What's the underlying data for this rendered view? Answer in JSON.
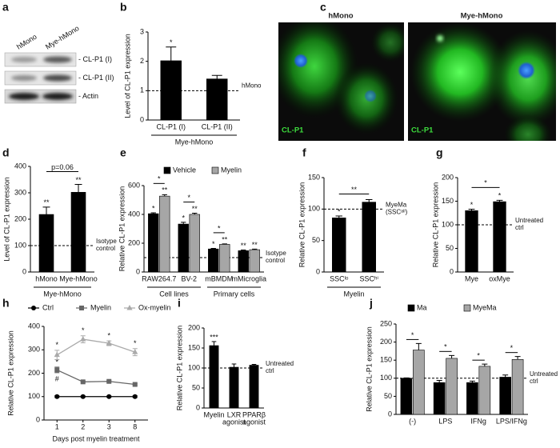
{
  "blot": {
    "panel": "a",
    "lanes": [
      "hMono",
      "Mye-hMono"
    ],
    "bands": [
      "- CL-P1 (I)",
      "- CL-P1 (II)",
      "- Actin"
    ]
  },
  "micrographs": {
    "panel": "c",
    "images": [
      {
        "title": "hMono",
        "stain": "CL-P1"
      },
      {
        "title": "Mye-hMono",
        "stain": "CL-P1"
      }
    ]
  },
  "chart_data": [
    {
      "type": "bar",
      "panel": "b",
      "ylabel": "Level of CL-P1 expression",
      "categories": [
        "CL-P1 (I)",
        "CL-P1 (II)"
      ],
      "values": [
        2.02,
        1.4
      ],
      "errors": [
        0.47,
        0.12
      ],
      "significance": [
        "*",
        null
      ],
      "color": "#000000",
      "ylim": [
        0,
        3
      ],
      "yticks": [
        0,
        1,
        2,
        3
      ],
      "reference_line": {
        "value": 1,
        "label": [
          "hMono"
        ]
      },
      "groups": [
        {
          "label": "Mye-hMono",
          "span": 2
        }
      ]
    },
    {
      "type": "bar",
      "panel": "d",
      "ylabel": "Level of CL-P1 expression",
      "categories": [
        "hMono",
        "Mye-hMono"
      ],
      "values": [
        218,
        302
      ],
      "errors": [
        28,
        30
      ],
      "significance": [
        "**",
        "**"
      ],
      "bracket_label": "p=0.06",
      "color": "#000000",
      "ylim": [
        0,
        400
      ],
      "yticks": [
        0,
        100,
        200,
        300,
        400
      ],
      "reference_line": {
        "value": 100,
        "label": [
          "Isotype",
          "control"
        ]
      },
      "groups": [
        {
          "label": "Mye-hMono",
          "span": 2
        }
      ]
    },
    {
      "type": "bar",
      "panel": "e",
      "ylabel": "Relative CL-P1 expression",
      "categories": [
        "RAW264.7",
        "BV-2",
        "mBMDM",
        "mMicroglia"
      ],
      "series": [
        {
          "name": "Vehicle",
          "color": "#000000",
          "values": [
            405,
            333,
            160,
            148
          ],
          "errors": [
            6,
            12,
            4,
            5
          ],
          "significance": [
            "*",
            "*",
            "*",
            "**"
          ]
        },
        {
          "name": "Myelin",
          "color": "#a6a6a6",
          "values": [
            527,
            400,
            192,
            155
          ],
          "errors": [
            10,
            8,
            3,
            4
          ],
          "significance": [
            "**",
            "**",
            "**",
            "**"
          ]
        }
      ],
      "bracket_labels": [
        "*",
        "*",
        "*",
        null
      ],
      "ylim": [
        0,
        600
      ],
      "yticks": [
        0,
        200,
        400,
        600
      ],
      "reference_line": {
        "value": 100,
        "label": [
          "Isotype",
          "control"
        ]
      },
      "groups": [
        {
          "label": "Cell lines",
          "span": 2
        },
        {
          "label": "Primary cells",
          "span": 2
        }
      ]
    },
    {
      "type": "bar",
      "panel": "f",
      "ylabel": "Relative CL-P1 expression",
      "categories": [
        "SSCˡᵒ",
        "SSCʰⁱ"
      ],
      "values": [
        86,
        111
      ],
      "errors": [
        3,
        4
      ],
      "significance": [
        "*",
        null
      ],
      "bracket_label": "**",
      "color": "#000000",
      "ylim": [
        0,
        150
      ],
      "yticks": [
        0,
        50,
        100,
        150
      ],
      "reference_line": {
        "value": 100,
        "label": [
          "MyeMa",
          "(SSCᵃˡˡ)"
        ]
      },
      "groups": [
        {
          "label": "Myelin",
          "span": 2
        }
      ]
    },
    {
      "type": "bar",
      "panel": "g",
      "ylabel": "Relative CL-P1 expression",
      "categories": [
        "Mye",
        "oxMye"
      ],
      "values": [
        130,
        149
      ],
      "errors": [
        3,
        3
      ],
      "significance": [
        "*",
        "*"
      ],
      "bracket_label": "*",
      "color": "#000000",
      "ylim": [
        0,
        200
      ],
      "yticks": [
        0,
        50,
        100,
        150,
        200
      ],
      "reference_line": {
        "value": 100,
        "label": [
          "Untreated",
          "ctrl"
        ]
      }
    },
    {
      "type": "line",
      "panel": "h",
      "ylabel": "Relative CL-P1 expression",
      "xlabel": "Days post myelin treatment",
      "categories": [
        "1",
        "2",
        "3",
        "8"
      ],
      "series": [
        {
          "name": "Ctrl",
          "color": "#000000",
          "marker": "circle",
          "values": [
            100,
            100,
            100,
            100
          ],
          "errors": [
            4,
            3,
            3,
            4
          ]
        },
        {
          "name": "Myelin",
          "color": "#666666",
          "marker": "square",
          "values": [
            214,
            163,
            165,
            152
          ],
          "errors": [
            12,
            3,
            3,
            3
          ],
          "significance": [
            "*",
            null,
            null,
            null
          ],
          "significance_below": [
            "#",
            null,
            null,
            null
          ]
        },
        {
          "name": "Ox-myelin",
          "color": "#aaaaaa",
          "marker": "triangle",
          "values": [
            278,
            345,
            328,
            290
          ],
          "errors": [
            20,
            15,
            10,
            15
          ],
          "significance": [
            "*",
            "*",
            "*",
            "*"
          ]
        }
      ],
      "ylim": [
        0,
        400
      ],
      "yticks": [
        0,
        100,
        200,
        300,
        400
      ]
    },
    {
      "type": "bar",
      "panel": "i",
      "ylabel": "Relative CL-P1 expression",
      "categories": [
        [
          "Myelin"
        ],
        [
          "LXR",
          "agonist"
        ],
        [
          "PPARβ",
          "agonist"
        ]
      ],
      "values": [
        156,
        102,
        107
      ],
      "errors": [
        10,
        8,
        2
      ],
      "significance": [
        "***",
        null,
        null
      ],
      "color": "#000000",
      "ylim": [
        0,
        200
      ],
      "yticks": [
        0,
        50,
        100,
        150,
        200
      ],
      "reference_line": {
        "value": 100,
        "label": [
          "Untreated",
          "ctrl"
        ]
      }
    },
    {
      "type": "bar",
      "panel": "j",
      "ylabel": "Relative CL-P1 expression",
      "categories": [
        "(-)",
        "LPS",
        "IFNg",
        "LPS/IFNg"
      ],
      "series": [
        {
          "name": "Ma",
          "color": "#000000",
          "values": [
            100,
            88,
            88,
            103
          ],
          "errors": [
            1,
            6,
            4,
            6
          ]
        },
        {
          "name": "MyeMa",
          "color": "#a6a6a6",
          "values": [
            178,
            155,
            133,
            152
          ],
          "errors": [
            18,
            8,
            6,
            8
          ]
        }
      ],
      "bracket_labels": [
        "*",
        "*",
        "*",
        "*"
      ],
      "ylim": [
        0,
        250
      ],
      "yticks": [
        0,
        50,
        100,
        150,
        200,
        250
      ],
      "reference_line": {
        "value": 100,
        "label": [
          "Untreated",
          "ctrl"
        ]
      }
    }
  ]
}
